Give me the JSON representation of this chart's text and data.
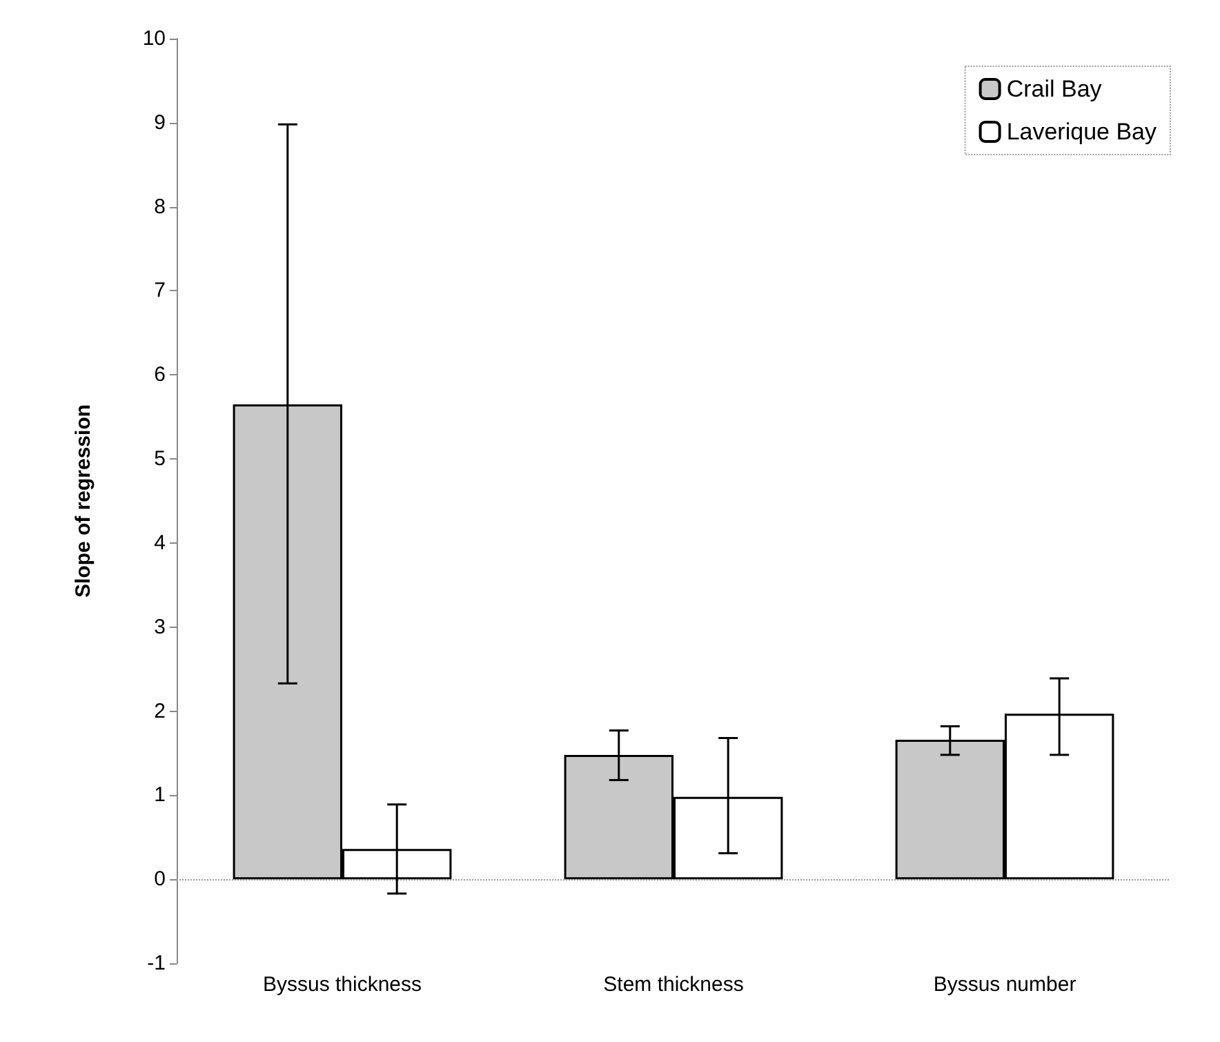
{
  "chart_data": {
    "type": "bar",
    "ylabel": "Slope of regression",
    "categories": [
      "Byssus thickness",
      "Stem thickness",
      "Byssus number"
    ],
    "series": [
      {
        "name": "Crail Bay",
        "color": "#c8c8c8",
        "values": [
          5.65,
          1.48,
          1.66
        ],
        "errors": [
          [
            2.33,
            8.98
          ],
          [
            1.18,
            1.77
          ],
          [
            1.48,
            1.82
          ]
        ]
      },
      {
        "name": "Laverique Bay",
        "color": "#ffffff",
        "values": [
          0.36,
          0.98,
          1.97
        ],
        "errors": [
          [
            -0.17,
            0.89
          ],
          [
            0.31,
            1.68
          ],
          [
            1.48,
            2.39
          ]
        ]
      }
    ],
    "ylim": [
      -1,
      10
    ],
    "yticks": [
      -1,
      0,
      1,
      2,
      3,
      4,
      5,
      6,
      7,
      8,
      9,
      10
    ],
    "ref_lines": [
      {
        "axis": "y",
        "value": 0,
        "color": "#999999",
        "line_style": "dotted"
      }
    ],
    "grid": false,
    "legend": "top right"
  }
}
